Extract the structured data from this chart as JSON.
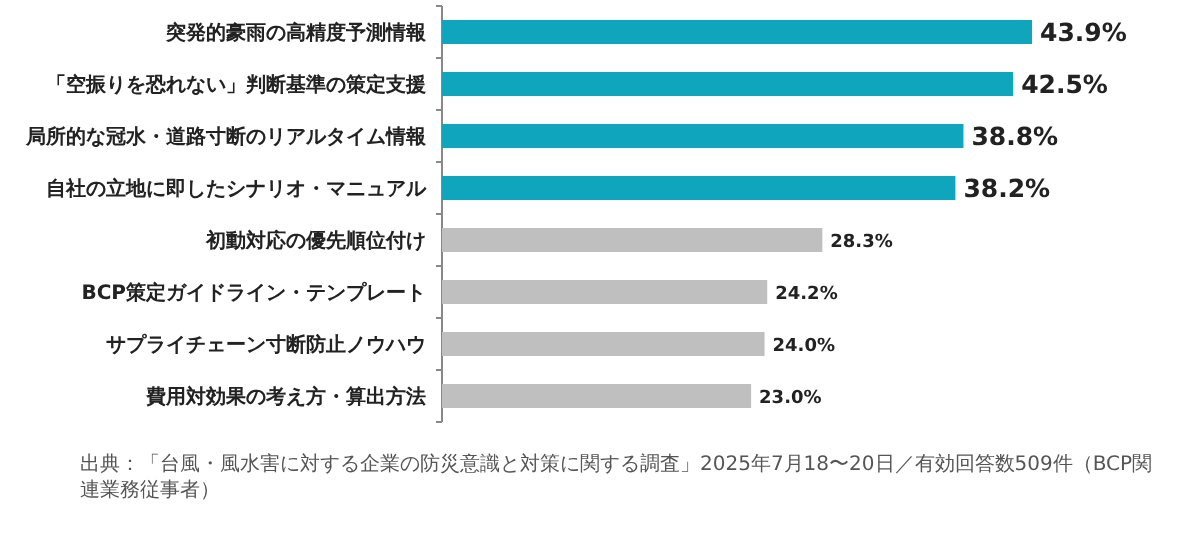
{
  "chart_data": {
    "type": "bar",
    "orientation": "horizontal",
    "categories": [
      "突発的豪雨の高精度予測情報",
      "「空振りを恐れない」判断基準の策定支援",
      "局所的な冠水・道路寸断のリアルタイム情報",
      "自社の立地に即したシナリオ・マニュアル",
      "初動対応の優先順位付け",
      "BCP策定ガイドライン・テンプレート",
      "サプライチェーン寸断防止ノウハウ",
      "費用対効果の考え方・算出方法"
    ],
    "values": [
      43.9,
      42.5,
      38.8,
      38.2,
      28.3,
      24.2,
      24.0,
      23.0
    ],
    "colors": [
      "#0fa5bd",
      "#0fa5bd",
      "#0fa5bd",
      "#0fa5bd",
      "#bfbfbf",
      "#bfbfbf",
      "#bfbfbf",
      "#bfbfbf"
    ],
    "value_labels": [
      "43.9%",
      "42.5%",
      "38.8%",
      "38.2%",
      "28.3%",
      "24.2%",
      "24.0%",
      "23.0%"
    ],
    "tick_labels": "y",
    "annotations": [
      "出典：「台風・風水害に対する企業の防災意識と対策に関する調査」2025年7月18〜20日／有効回答数509件（BCP関連業務従事者）"
    ]
  }
}
